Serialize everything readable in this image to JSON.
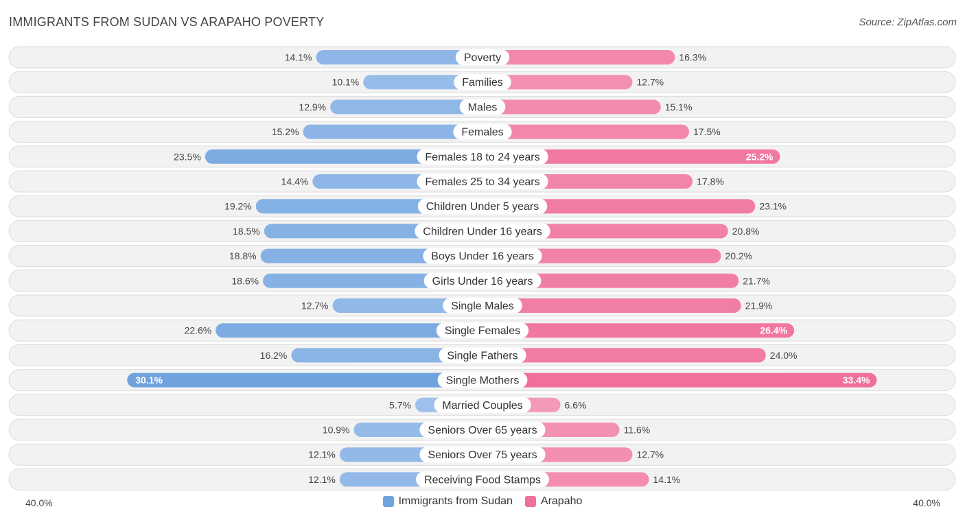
{
  "title": "IMMIGRANTS FROM SUDAN VS ARAPAHO POVERTY",
  "source": "Source: ZipAtlas.com",
  "colors": {
    "left": "#6fa3de",
    "left_light": "#a9c8ee",
    "right": "#f07099",
    "right_light": "#f5a6c0"
  },
  "chart_data": {
    "type": "bar",
    "orientation": "diverging-horizontal",
    "xlim": [
      -40,
      40
    ],
    "axis_labels": {
      "left": "40.0%",
      "right": "40.0%"
    },
    "legend": [
      "Immigrants from Sudan",
      "Arapaho"
    ],
    "categories": [
      "Poverty",
      "Families",
      "Males",
      "Females",
      "Females 18 to 24 years",
      "Females 25 to 34 years",
      "Children Under 5 years",
      "Children Under 16 years",
      "Boys Under 16 years",
      "Girls Under 16 years",
      "Single Males",
      "Single Females",
      "Single Fathers",
      "Single Mothers",
      "Married Couples",
      "Seniors Over 65 years",
      "Seniors Over 75 years",
      "Receiving Food Stamps"
    ],
    "series": [
      {
        "name": "Immigrants from Sudan",
        "values": [
          14.1,
          10.1,
          12.9,
          15.2,
          23.5,
          14.4,
          19.2,
          18.5,
          18.8,
          18.6,
          12.7,
          22.6,
          16.2,
          30.1,
          5.7,
          10.9,
          12.1,
          12.1
        ],
        "labels": [
          "14.1%",
          "10.1%",
          "12.9%",
          "15.2%",
          "23.5%",
          "14.4%",
          "19.2%",
          "18.5%",
          "18.8%",
          "18.6%",
          "12.7%",
          "22.6%",
          "16.2%",
          "30.1%",
          "5.7%",
          "10.9%",
          "12.1%",
          "12.1%"
        ]
      },
      {
        "name": "Arapaho",
        "values": [
          16.3,
          12.7,
          15.1,
          17.5,
          25.2,
          17.8,
          23.1,
          20.8,
          20.2,
          21.7,
          21.9,
          26.4,
          24.0,
          33.4,
          6.6,
          11.6,
          12.7,
          14.1
        ],
        "labels": [
          "16.3%",
          "12.7%",
          "15.1%",
          "17.5%",
          "25.2%",
          "17.8%",
          "23.1%",
          "20.8%",
          "20.2%",
          "21.7%",
          "21.9%",
          "26.4%",
          "24.0%",
          "33.4%",
          "6.6%",
          "11.6%",
          "12.7%",
          "14.1%"
        ]
      }
    ]
  }
}
